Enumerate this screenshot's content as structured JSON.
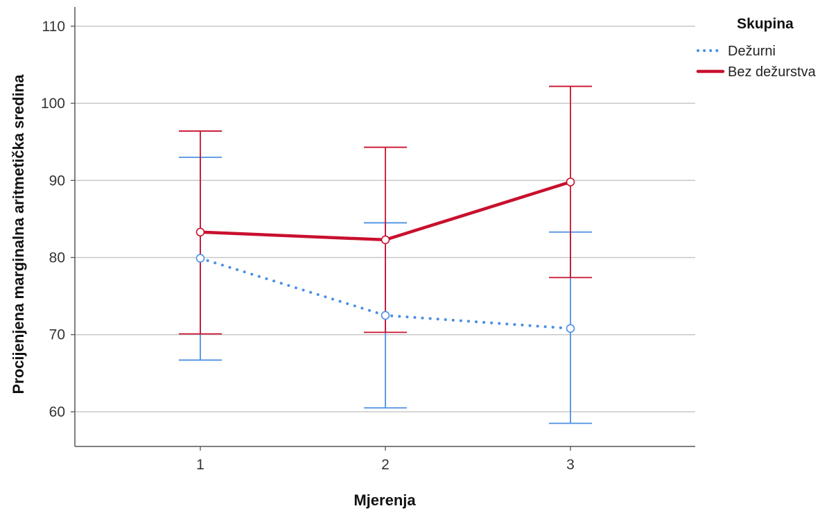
{
  "chart_data": {
    "type": "line",
    "xlabel": "Mjerenja",
    "ylabel": "Procijenjena marginalna aritmetička sredina",
    "categories": [
      "1",
      "2",
      "3"
    ],
    "ylim": [
      55.5,
      112.5
    ],
    "yticks": [
      "60",
      "70",
      "80",
      "90",
      "100",
      "110"
    ],
    "grid": true,
    "legend": {
      "title": "Skupina",
      "position": "top-right"
    },
    "series": [
      {
        "name": "Dežurni",
        "color": "#4a90e2",
        "line_style": "dotted",
        "values": [
          79.9,
          72.5,
          70.8
        ],
        "error_low": [
          66.7,
          60.5,
          58.5
        ],
        "error_high": [
          93.0,
          84.5,
          83.3
        ]
      },
      {
        "name": "Bez dežurstva",
        "color": "#c8102e",
        "line_style": "solid",
        "values": [
          83.3,
          82.3,
          89.8
        ],
        "error_low": [
          70.1,
          70.3,
          77.4
        ],
        "error_high": [
          96.4,
          94.3,
          102.2
        ]
      }
    ]
  }
}
